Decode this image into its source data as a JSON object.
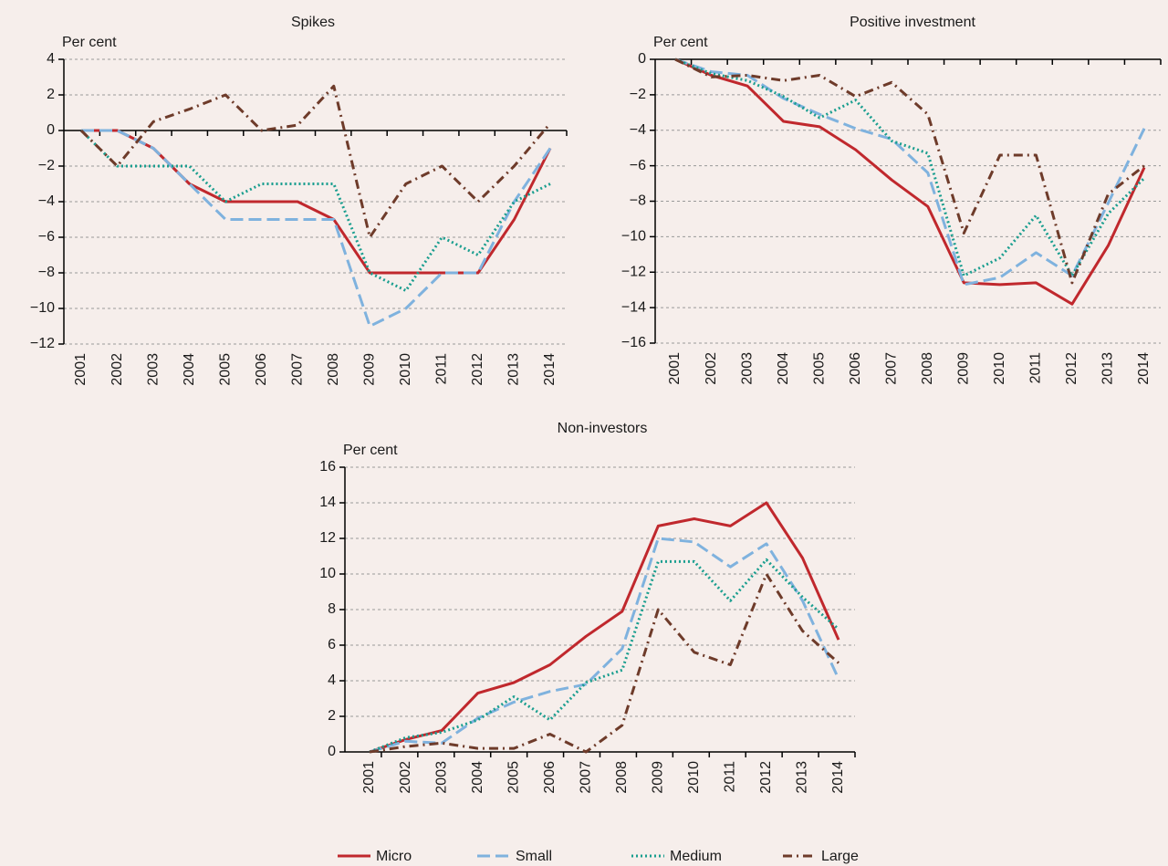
{
  "chart_data": [
    {
      "type": "line",
      "title": "Spikes",
      "y_label": "Per cent",
      "categories": [
        "2001",
        "2002",
        "2003",
        "2004",
        "2005",
        "2006",
        "2007",
        "2008",
        "2009",
        "2010",
        "2011",
        "2012",
        "2013",
        "2014"
      ],
      "series": [
        {
          "name": "Micro",
          "color": "#c0282d",
          "style": "solid",
          "values": [
            0,
            0,
            -1,
            -3,
            -4,
            -4,
            -4,
            -5,
            -8,
            -8,
            -8,
            -8,
            -5,
            -1
          ]
        },
        {
          "name": "Small",
          "color": "#7fb2de",
          "style": "dashed",
          "values": [
            0,
            0,
            -1,
            -3,
            -5,
            -5,
            -5,
            -5,
            -11,
            -10,
            -8,
            -8,
            -4,
            -1
          ]
        },
        {
          "name": "Medium",
          "color": "#1a9e8f",
          "style": "dotted",
          "values": [
            0,
            -2,
            -2,
            -2,
            -4,
            -3,
            -3,
            -3,
            -8,
            -9,
            -6,
            -7,
            -4,
            -3
          ]
        },
        {
          "name": "Large",
          "color": "#6e3b2a",
          "style": "dashdot",
          "values": [
            0,
            -2,
            0.5,
            1.2,
            2,
            0,
            0.3,
            2.5,
            -6,
            -3,
            -2,
            -4,
            -2,
            0.4
          ]
        }
      ],
      "ylim": [
        -12,
        4
      ],
      "yticks": [
        {
          "value": -12,
          "label": "−12"
        },
        {
          "value": -10,
          "label": "−10"
        },
        {
          "value": -8,
          "label": "−8"
        },
        {
          "value": -6,
          "label": "−6"
        },
        {
          "value": -4,
          "label": "−4"
        },
        {
          "value": -2,
          "label": "−2"
        },
        0,
        2,
        4
      ],
      "grid": true
    },
    {
      "type": "line",
      "title": "Positive investment",
      "y_label": "Per cent",
      "categories": [
        "2001",
        "2002",
        "2003",
        "2004",
        "2005",
        "2006",
        "2007",
        "2008",
        "2009",
        "2010",
        "2011",
        "2012",
        "2013",
        "2014"
      ],
      "series": [
        {
          "name": "Micro",
          "color": "#c0282d",
          "values": [
            0,
            -0.9,
            -1.5,
            -3.5,
            -3.8,
            -5.1,
            -6.8,
            -8.3,
            -12.6,
            -12.7,
            -12.6,
            -13.8,
            -10.5,
            -6.1
          ]
        },
        {
          "name": "Small",
          "color": "#7fb2de",
          "values": [
            0,
            -0.7,
            -0.9,
            -2.2,
            -3.1,
            -3.9,
            -4.5,
            -6.4,
            -12.7,
            -12.3,
            -10.9,
            -12.2,
            -8.1,
            -3.9
          ]
        },
        {
          "name": "Medium",
          "color": "#1a9e8f",
          "values": [
            0,
            -0.8,
            -1.2,
            -2.1,
            -3.3,
            -2.3,
            -4.6,
            -5.3,
            -12.2,
            -11.2,
            -8.8,
            -12.2,
            -8.7,
            -6.7
          ]
        },
        {
          "name": "Large",
          "color": "#6e3b2a",
          "values": [
            0,
            -1.0,
            -0.9,
            -1.2,
            -0.9,
            -2.1,
            -1.3,
            -3.1,
            -9.8,
            -5.4,
            -5.4,
            -12.6,
            -7.6,
            -6.0
          ]
        }
      ],
      "ylim": [
        -16,
        0
      ],
      "yticks": [
        {
          "value": -16,
          "label": "−16"
        },
        {
          "value": -14,
          "label": "−14"
        },
        {
          "value": -12,
          "label": "−12"
        },
        {
          "value": -10,
          "label": "−10"
        },
        {
          "value": -8,
          "label": "−8"
        },
        {
          "value": -6,
          "label": "−6"
        },
        {
          "value": -4,
          "label": "−4"
        },
        {
          "value": -2,
          "label": "−2"
        },
        0
      ],
      "grid": true
    },
    {
      "type": "line",
      "title": "Non-investors",
      "y_label": "Per cent",
      "categories": [
        "2001",
        "2002",
        "2003",
        "2004",
        "2005",
        "2006",
        "2007",
        "2008",
        "2009",
        "2010",
        "2011",
        "2012",
        "2013",
        "2014"
      ],
      "series": [
        {
          "name": "Micro",
          "color": "#c0282d",
          "values": [
            0,
            0.7,
            1.2,
            3.3,
            3.9,
            4.9,
            6.5,
            7.9,
            12.7,
            13.1,
            12.7,
            14,
            10.9,
            6.3
          ]
        },
        {
          "name": "Small",
          "color": "#7fb2de",
          "values": [
            0,
            0.6,
            0.5,
            1.9,
            2.8,
            3.4,
            3.8,
            5.8,
            12,
            11.8,
            10.4,
            11.7,
            8.5,
            4.1
          ]
        },
        {
          "name": "Medium",
          "color": "#1a9e8f",
          "values": [
            0,
            0.8,
            1.1,
            1.8,
            3.1,
            1.8,
            3.9,
            4.6,
            10.7,
            10.7,
            8.5,
            10.8,
            8.7,
            6.9
          ]
        },
        {
          "name": "Large",
          "color": "#6e3b2a",
          "values": [
            0,
            0.3,
            0.5,
            0.2,
            0.2,
            1,
            0,
            1.5,
            8,
            5.6,
            4.9,
            10,
            6.8,
            5
          ]
        }
      ],
      "ylim": [
        0,
        16
      ],
      "yticks": [
        0,
        2,
        4,
        6,
        8,
        10,
        12,
        14,
        16
      ],
      "grid": true
    }
  ]
}
